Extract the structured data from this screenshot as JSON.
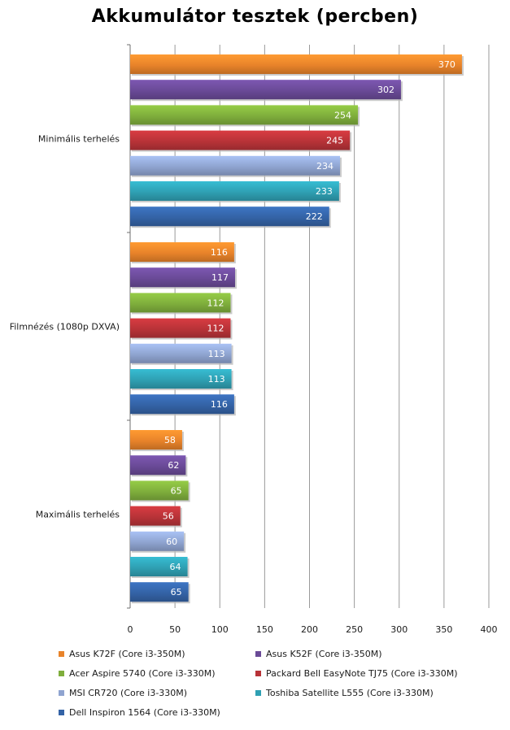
{
  "chart_data": {
    "type": "bar",
    "orientation": "horizontal",
    "title": "Akkumulátor tesztek (percben)",
    "categories": [
      "Minimális terhelés",
      "Filmnézés (1080p DXVA)",
      "Maximális terhelés"
    ],
    "xlim": [
      0,
      400
    ],
    "xticks": [
      0,
      50,
      100,
      150,
      200,
      250,
      300,
      350,
      400
    ],
    "grid": true,
    "legend_position": "bottom",
    "series": [
      {
        "name": "Asus K72F (Core i3-350M)",
        "color": "#e8832a",
        "values": [
          370,
          116,
          58
        ]
      },
      {
        "name": "Asus K52F (Core i3-350M)",
        "color": "#6a4a97",
        "values": [
          302,
          117,
          62
        ]
      },
      {
        "name": "Acer Aspire 5740 (Core i3-330M)",
        "color": "#7fae3c",
        "values": [
          254,
          112,
          65
        ]
      },
      {
        "name": "Packard Bell EasyNote  TJ75 (Core i3-330M)",
        "color": "#b83338",
        "values": [
          245,
          112,
          56
        ]
      },
      {
        "name": "MSI CR720 (Core i3-330M)",
        "color": "#8fa4d0",
        "values": [
          234,
          113,
          60
        ]
      },
      {
        "name": "Toshiba Satellite  L555 (Core i3-330M)",
        "color": "#2fa0b3",
        "values": [
          233,
          113,
          64
        ]
      },
      {
        "name": "Dell Inspiron 1564 (Core i3-330M)",
        "color": "#3463a6",
        "values": [
          222,
          116,
          65
        ]
      }
    ]
  }
}
